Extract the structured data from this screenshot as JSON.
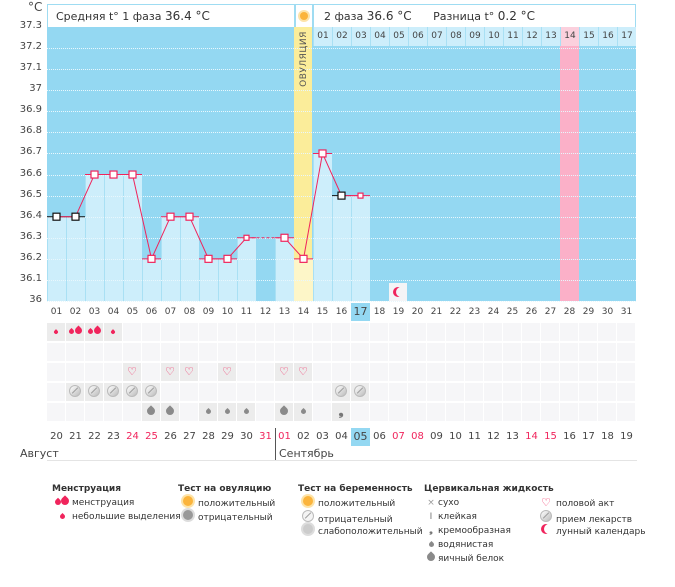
{
  "unit": "°C",
  "header": {
    "phase1_label": "Средняя t° 1 фаза",
    "phase1_value": "36.4 °C",
    "phase2_label": "2 фаза",
    "phase2_value": "36.6 °C",
    "diff_label": "Разница t°",
    "diff_value": "0.2 °C",
    "ovulation_label": "ОВУЛЯЦИЯ"
  },
  "y_labels": [
    "37.3",
    "37.2",
    "37.1",
    "37",
    "36.9",
    "36.8",
    "36.7",
    "36.6",
    "36.5",
    "36.4",
    "36.3",
    "36.2",
    "36.1",
    "36"
  ],
  "chart_data": {
    "type": "line",
    "ylim": [
      36.0,
      37.3
    ],
    "cycle_days": [
      "01",
      "02",
      "03",
      "04",
      "05",
      "06",
      "07",
      "08",
      "09",
      "10",
      "11",
      "12",
      "13",
      "14",
      "15",
      "16",
      "17",
      "18",
      "19",
      "20",
      "21",
      "22",
      "23",
      "24",
      "25",
      "26",
      "27",
      "28",
      "29",
      "30",
      "31"
    ],
    "temperatures": [
      36.4,
      36.4,
      36.6,
      36.6,
      36.6,
      36.2,
      36.4,
      36.4,
      36.2,
      36.2,
      36.3,
      null,
      36.3,
      36.2,
      36.7,
      36.5,
      36.5
    ],
    "point_style": [
      "black",
      "black",
      "pink",
      "pink",
      "pink",
      "pink",
      "pink",
      "pink",
      "pink",
      "pink",
      "small",
      "none",
      "pink",
      "pink",
      "pink",
      "black",
      "small"
    ],
    "ovulation_day": 14,
    "current_day": 17,
    "predicted_period_day": 28,
    "moon_day": 19,
    "phase2_days": [
      "01",
      "02",
      "03",
      "04",
      "05",
      "06",
      "07",
      "08",
      "09",
      "10",
      "11",
      "12",
      "13",
      "14",
      "15",
      "16",
      "17"
    ],
    "phase2_highlight": 14
  },
  "icon_rows": {
    "menstruation": {
      "1": "small",
      "2": "big",
      "3": "big",
      "4": "small"
    },
    "ovulation_test": {},
    "intercourse": {
      "5": "heart",
      "7": "heart",
      "8": "heart",
      "10": "heart",
      "13": "heart",
      "14": "heart"
    },
    "medication": {
      "2": "pill",
      "3": "pill",
      "4": "pill",
      "5": "pill",
      "6": "pill",
      "16": "pill",
      "17": "pill"
    },
    "fluid": {
      "6": "egg",
      "7": "egg",
      "9": "water",
      "10": "water",
      "11": "water",
      "13": "egg",
      "14": "water",
      "16": "creamy"
    }
  },
  "dates": [
    "20",
    "21",
    "22",
    "23",
    "24",
    "25",
    "26",
    "27",
    "28",
    "29",
    "30",
    "31",
    "01",
    "02",
    "03",
    "04",
    "05",
    "06",
    "07",
    "08",
    "09",
    "10",
    "11",
    "12",
    "13",
    "14",
    "15",
    "16",
    "17",
    "18",
    "19"
  ],
  "red_dates_idx": [
    4,
    5,
    11,
    12,
    18,
    19,
    25,
    26
  ],
  "today_idx": 16,
  "months": {
    "first": "Август",
    "second": "Сентябрь"
  },
  "legend": {
    "menstruation": {
      "title": "Менструация",
      "items": [
        "менструация",
        "небольшие выделения"
      ]
    },
    "ovulation_test": {
      "title": "Тест на овуляцию",
      "items": [
        "положительный",
        "отрицательный"
      ]
    },
    "pregnancy_test": {
      "title": "Тест на беременность",
      "items": [
        "положительный",
        "отрицательный",
        "слабоположительный"
      ]
    },
    "cervical_fluid": {
      "title": "Цервикальная жидкость",
      "items": [
        "сухо",
        "клейкая",
        "кремообразная",
        "водянистая",
        "яичный белок"
      ]
    },
    "other": {
      "items": [
        "половой акт",
        "прием лекарств",
        "лунный календарь"
      ]
    }
  },
  "colors": {
    "plot_bg": "#94d8f2",
    "bar": "#cdeefb",
    "line": "#f0245c",
    "ovulation": "#fbed9a",
    "predicted": "#fbb0c8"
  }
}
